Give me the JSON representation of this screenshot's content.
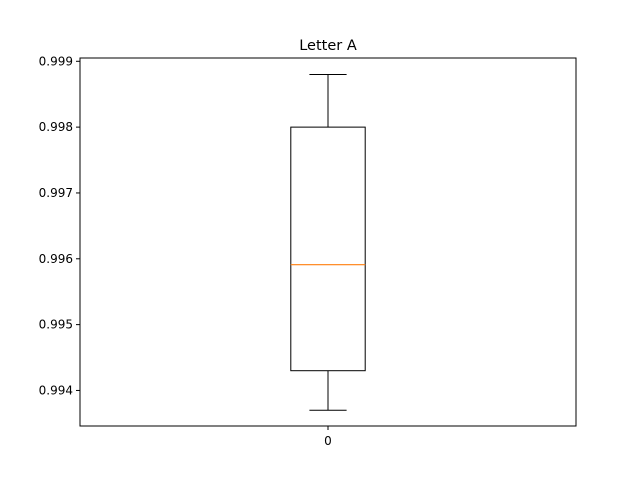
{
  "chart_data": {
    "type": "box",
    "title": "Letter A",
    "xlabel": "",
    "ylabel": "",
    "categories": [
      "0"
    ],
    "boxes": [
      {
        "label": "0",
        "whisker_low": 0.9937,
        "q1": 0.9943,
        "median": 0.99591,
        "q3": 0.998,
        "whisker_high": 0.9988
      }
    ],
    "ylim": [
      0.99346,
      0.99905
    ],
    "yticks": [
      0.994,
      0.995,
      0.996,
      0.997,
      0.998,
      0.999
    ],
    "ytick_labels": [
      "0.994",
      "0.995",
      "0.996",
      "0.997",
      "0.998",
      "0.999"
    ],
    "grid": false,
    "colors": {
      "box": "#000000",
      "median": "#ff7f0e",
      "axes": "#000000",
      "background": "#ffffff"
    }
  }
}
